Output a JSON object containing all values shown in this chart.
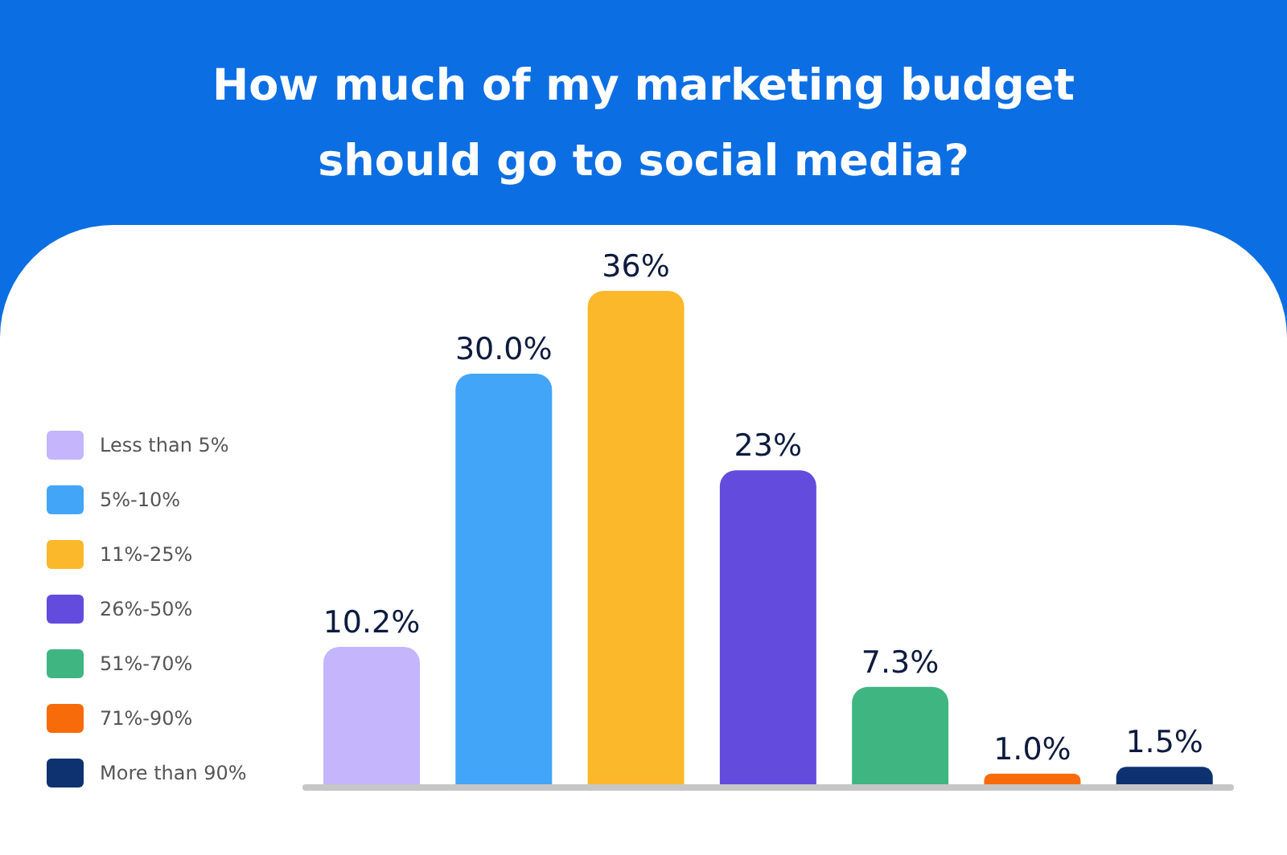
{
  "chart_data": {
    "type": "bar",
    "title": "How much of my marketing budget should go to social media?",
    "categories": [
      null,
      null,
      null,
      null,
      null,
      null,
      null
    ],
    "series": [
      {
        "name": "Less than 5%",
        "color": "#c4b5fd",
        "values": [
          10.2,
          null,
          null,
          null,
          null,
          null,
          null
        ],
        "value_labels": [
          "10.2%",
          null,
          null,
          null,
          null,
          null,
          null
        ]
      },
      {
        "name": "5%-10%",
        "color": "#42a5f8",
        "values": [
          null,
          30.0,
          null,
          null,
          null,
          null,
          null
        ],
        "value_labels": [
          null,
          "30.0%",
          null,
          null,
          null,
          null,
          null
        ]
      },
      {
        "name": "11%-25%",
        "color": "#fbb82a",
        "values": [
          null,
          null,
          36,
          null,
          null,
          null,
          null
        ],
        "value_labels": [
          null,
          null,
          "36%",
          null,
          null,
          null,
          null
        ]
      },
      {
        "name": "26%-50%",
        "color": "#624bdd",
        "values": [
          null,
          null,
          null,
          23,
          null,
          null,
          null
        ],
        "value_labels": [
          null,
          null,
          null,
          "23%",
          null,
          null,
          null
        ]
      },
      {
        "name": "51%-70%",
        "color": "#3fb682",
        "values": [
          null,
          null,
          null,
          null,
          7.3,
          null,
          null
        ],
        "value_labels": [
          null,
          null,
          null,
          null,
          "7.3%",
          null,
          null
        ]
      },
      {
        "name": "71%-90%",
        "color": "#f76b0b",
        "values": [
          null,
          null,
          null,
          null,
          null,
          1.0,
          null
        ],
        "value_labels": [
          null,
          null,
          null,
          null,
          null,
          "1.0%",
          null
        ]
      },
      {
        "name": "More than 90%",
        "color": "#0e3270",
        "values": [
          null,
          null,
          null,
          null,
          null,
          null,
          1.5
        ],
        "value_labels": [
          null,
          null,
          null,
          null,
          null,
          null,
          "1.5%"
        ]
      }
    ],
    "stacked": true,
    "legend": "left",
    "tick_labels": false
  }
}
